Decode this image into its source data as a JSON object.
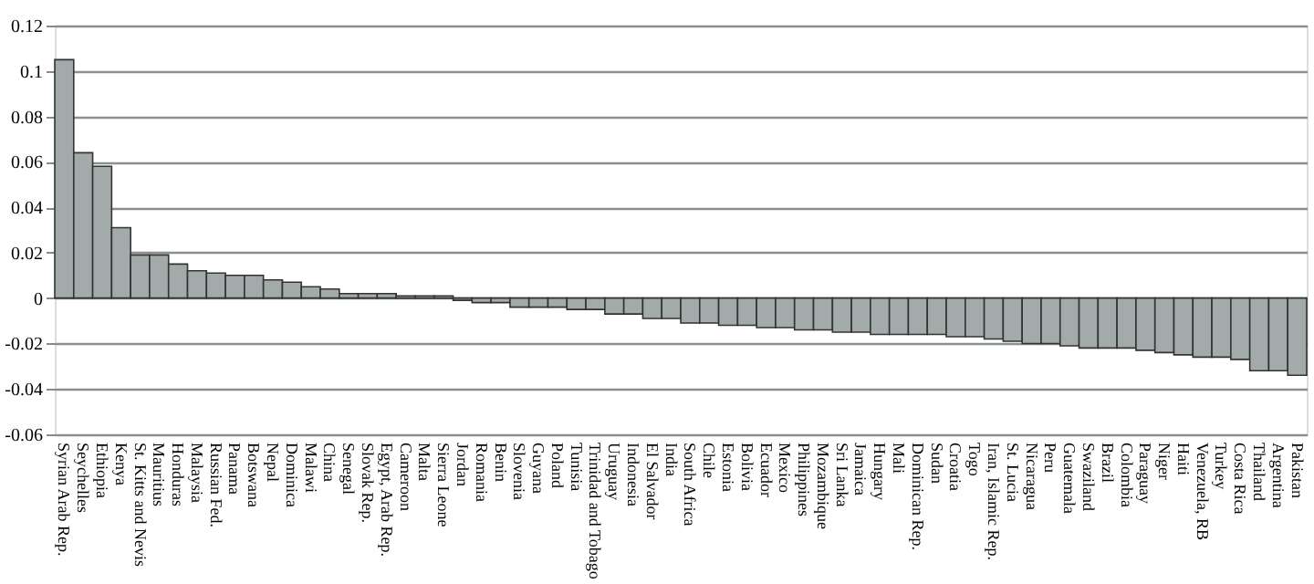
{
  "chart_data": {
    "type": "bar",
    "categories": [
      "Syrian Arab Rep.",
      "Seychelles",
      "Ethiopia",
      "Kenya",
      "St. Kitts and Nevis",
      "Mauritius",
      "Honduras",
      "Malaysia",
      "Russian Fed.",
      "Panama",
      "Botswana",
      "Nepal",
      "Dominica",
      "Malawi",
      "China",
      "Senegal",
      "Slovak Rep.",
      "Egypt, Arab Rep.",
      "Cameroon",
      "Malta",
      "Sierra Leone",
      "Jordan",
      "Romania",
      "Benin",
      "Slovenia",
      "Guyana",
      "Poland",
      "Tunisia",
      "Trinidad and Tobago",
      "Uruguay",
      "Indonesia",
      "El Salvador",
      "India",
      "South Africa",
      "Chile",
      "Estonia",
      "Bolivia",
      "Ecuador",
      "Mexico",
      "Philippines",
      "Mozambique",
      "Sri Lanka",
      "Jamaica",
      "Hungary",
      "Mali",
      "Dominican Rep.",
      "Sudan",
      "Croatia",
      "Togo",
      "Iran, Islamic Rep.",
      "St. Lucia",
      "Nicaragua",
      "Peru",
      "Guatemala",
      "Swaziland",
      "Brazil",
      "Colombia",
      "Paraguay",
      "Niger",
      "Haiti",
      "Venezuela, RB",
      "Turkey",
      "Costa Rica",
      "Thailand",
      "Argentina",
      "Pakistan"
    ],
    "values": [
      0.105,
      0.064,
      0.058,
      0.031,
      0.019,
      0.019,
      0.015,
      0.012,
      0.011,
      0.01,
      0.01,
      0.008,
      0.007,
      0.005,
      0.004,
      0.002,
      0.002,
      0.002,
      0.001,
      0.001,
      0.001,
      -0.001,
      -0.002,
      -0.002,
      -0.004,
      -0.004,
      -0.004,
      -0.005,
      -0.005,
      -0.007,
      -0.007,
      -0.009,
      -0.009,
      -0.011,
      -0.011,
      -0.012,
      -0.012,
      -0.013,
      -0.013,
      -0.014,
      -0.014,
      -0.015,
      -0.015,
      -0.016,
      -0.016,
      -0.016,
      -0.016,
      -0.017,
      -0.017,
      -0.018,
      -0.019,
      -0.02,
      -0.02,
      -0.021,
      -0.022,
      -0.022,
      -0.022,
      -0.023,
      -0.024,
      -0.025,
      -0.026,
      -0.026,
      -0.027,
      -0.032,
      -0.032,
      -0.034
    ],
    "color": "#a2aaaa",
    "ylim": [
      -0.06,
      0.12
    ],
    "yticks": [
      -0.06,
      -0.04,
      -0.02,
      0,
      0.02,
      0.04,
      0.06,
      0.08,
      0.1,
      0.12
    ],
    "grid": "y"
  }
}
